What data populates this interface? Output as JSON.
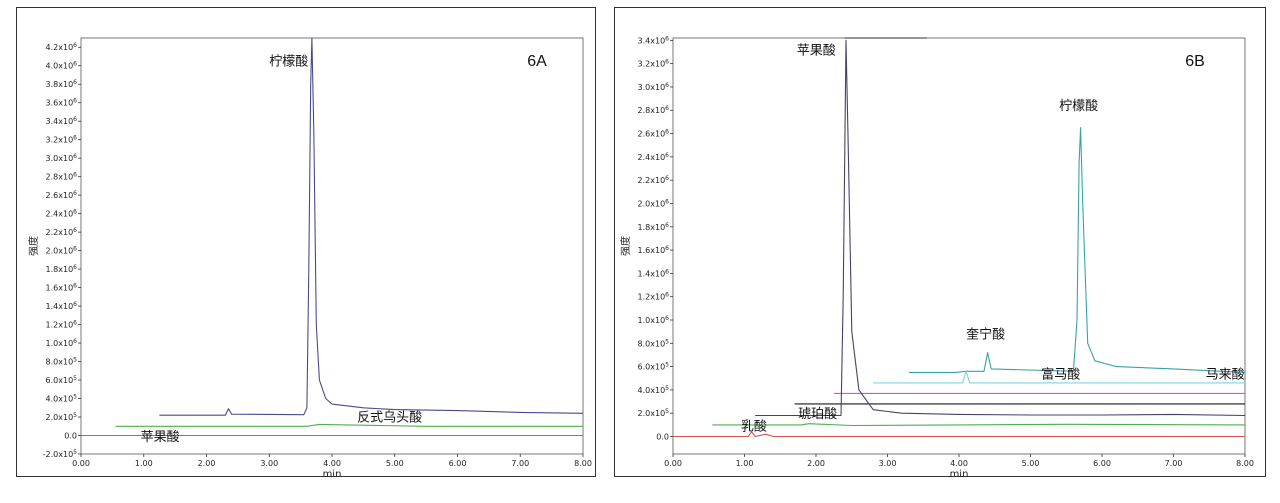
{
  "chart_data": [
    {
      "type": "line",
      "panel_label": "6A",
      "xlabel": "min",
      "ylabel": "强度",
      "xlim": [
        0,
        8
      ],
      "ylim": [
        -200000,
        4300000
      ],
      "x_ticks": [
        "0.00",
        "1.00",
        "2.00",
        "3.00",
        "4.00",
        "5.00",
        "6.00",
        "7.00",
        "8.00"
      ],
      "y_ticks": [
        {
          "v": -200000,
          "m": "-2.0x10",
          "e": "5"
        },
        {
          "v": 0,
          "m": "0.0",
          "e": ""
        },
        {
          "v": 200000,
          "m": "2.0x10",
          "e": "5"
        },
        {
          "v": 400000,
          "m": "4.0x10",
          "e": "5"
        },
        {
          "v": 600000,
          "m": "6.0x10",
          "e": "5"
        },
        {
          "v": 800000,
          "m": "8.0x10",
          "e": "5"
        },
        {
          "v": 1000000,
          "m": "1.0x10",
          "e": "6"
        },
        {
          "v": 1200000,
          "m": "1.2x10",
          "e": "6"
        },
        {
          "v": 1400000,
          "m": "1.4x10",
          "e": "6"
        },
        {
          "v": 1600000,
          "m": "1.6x10",
          "e": "6"
        },
        {
          "v": 1800000,
          "m": "1.8x10",
          "e": "6"
        },
        {
          "v": 2000000,
          "m": "2.0x10",
          "e": "6"
        },
        {
          "v": 2200000,
          "m": "2.2x10",
          "e": "6"
        },
        {
          "v": 2400000,
          "m": "2.4x10",
          "e": "6"
        },
        {
          "v": 2600000,
          "m": "2.6x10",
          "e": "6"
        },
        {
          "v": 2800000,
          "m": "2.8x10",
          "e": "6"
        },
        {
          "v": 3000000,
          "m": "3.0x10",
          "e": "6"
        },
        {
          "v": 3200000,
          "m": "3.2x10",
          "e": "6"
        },
        {
          "v": 3400000,
          "m": "3.4x10",
          "e": "6"
        },
        {
          "v": 3600000,
          "m": "3.6x10",
          "e": "6"
        },
        {
          "v": 3800000,
          "m": "3.8x10",
          "e": "6"
        },
        {
          "v": 4000000,
          "m": "4.0x10",
          "e": "6"
        },
        {
          "v": 4200000,
          "m": "4.2x10",
          "e": "6"
        }
      ],
      "series": [
        {
          "color": "#4a4a8a",
          "points": [
            [
              1.25,
              220000
            ],
            [
              2.3,
              220000
            ],
            [
              2.35,
              290000
            ],
            [
              2.4,
              230000
            ],
            [
              3.55,
              225000
            ],
            [
              3.6,
              300000
            ],
            [
              3.63,
              1800000
            ],
            [
              3.66,
              3800000
            ],
            [
              3.68,
              4300000
            ],
            [
              3.71,
              3300000
            ],
            [
              3.75,
              1200000
            ],
            [
              3.8,
              600000
            ],
            [
              3.9,
              400000
            ],
            [
              4.0,
              340000
            ],
            [
              4.5,
              300000
            ],
            [
              5.0,
              280000
            ],
            [
              6.0,
              270000
            ],
            [
              7.0,
              250000
            ],
            [
              8.0,
              240000
            ]
          ]
        },
        {
          "color": "#4caf50",
          "points": [
            [
              0.55,
              100000
            ],
            [
              3.6,
              100000
            ],
            [
              3.8,
              120000
            ],
            [
              5.5,
              100000
            ],
            [
              8.0,
              100000
            ]
          ]
        },
        {
          "color": "#d9534f",
          "points": [
            [
              0.0,
              0
            ],
            [
              8.0,
              0
            ]
          ]
        }
      ],
      "annotations": [
        {
          "text": "柠檬酸",
          "x": 3.0,
          "y": 4000000
        },
        {
          "text": "反式乌头酸",
          "x": 4.4,
          "y": 150000
        },
        {
          "text": "苹果酸",
          "x": 0.95,
          "y": -60000
        }
      ]
    },
    {
      "type": "line",
      "panel_label": "6B",
      "xlabel": "min",
      "ylabel": "强度",
      "xlim": [
        0,
        8
      ],
      "ylim": [
        -150000,
        3420000
      ],
      "x_ticks": [
        "0.00",
        "1.00",
        "2.00",
        "3.00",
        "4.00",
        "5.00",
        "6.00",
        "7.00",
        "8.00"
      ],
      "y_ticks": [
        {
          "v": 0,
          "m": "0.0",
          "e": ""
        },
        {
          "v": 200000,
          "m": "2.0x10",
          "e": "5"
        },
        {
          "v": 400000,
          "m": "4.0x10",
          "e": "5"
        },
        {
          "v": 600000,
          "m": "6.0x10",
          "e": "5"
        },
        {
          "v": 800000,
          "m": "8.0x10",
          "e": "5"
        },
        {
          "v": 1000000,
          "m": "1.0x10",
          "e": "6"
        },
        {
          "v": 1200000,
          "m": "1.2x10",
          "e": "6"
        },
        {
          "v": 1400000,
          "m": "1.4x10",
          "e": "6"
        },
        {
          "v": 1600000,
          "m": "1.6x10",
          "e": "6"
        },
        {
          "v": 1800000,
          "m": "1.8x10",
          "e": "6"
        },
        {
          "v": 2000000,
          "m": "2.0x10",
          "e": "6"
        },
        {
          "v": 2200000,
          "m": "2.2x10",
          "e": "6"
        },
        {
          "v": 2400000,
          "m": "2.4x10",
          "e": "6"
        },
        {
          "v": 2600000,
          "m": "2.6x10",
          "e": "6"
        },
        {
          "v": 2800000,
          "m": "2.8x10",
          "e": "6"
        },
        {
          "v": 3000000,
          "m": "3.0x10",
          "e": "6"
        },
        {
          "v": 3200000,
          "m": "3.2x10",
          "e": "6"
        },
        {
          "v": 3400000,
          "m": "3.4x10",
          "e": "6"
        }
      ],
      "series": [
        {
          "color": "#38a3a5",
          "points": [
            [
              3.3,
              550000
            ],
            [
              3.95,
              550000
            ],
            [
              4.1,
              560000
            ],
            [
              4.35,
              560000
            ],
            [
              4.4,
              720000
            ],
            [
              4.45,
              580000
            ],
            [
              5.6,
              560000
            ],
            [
              5.65,
              1000000
            ],
            [
              5.68,
              2350000
            ],
            [
              5.7,
              2650000
            ],
            [
              5.73,
              2000000
            ],
            [
              5.8,
              800000
            ],
            [
              5.9,
              650000
            ],
            [
              6.2,
              600000
            ],
            [
              7.0,
              580000
            ],
            [
              8.0,
              550000
            ]
          ]
        },
        {
          "color": "#7fd4e0",
          "points": [
            [
              2.8,
              460000
            ],
            [
              4.05,
              460000
            ],
            [
              4.1,
              560000
            ],
            [
              4.15,
              460000
            ],
            [
              8.0,
              460000
            ]
          ]
        },
        {
          "color": "#c060c0",
          "points": [
            [
              2.25,
              370000
            ],
            [
              8.0,
              370000
            ]
          ]
        },
        {
          "color": "#1a1a1a",
          "points": [
            [
              1.7,
              280000
            ],
            [
              8.0,
              280000
            ]
          ]
        },
        {
          "color": "#444466",
          "points": [
            [
              1.15,
              180000
            ],
            [
              2.35,
              180000
            ],
            [
              2.38,
              1200000
            ],
            [
              2.42,
              3400000
            ],
            [
              2.45,
              2500000
            ],
            [
              2.5,
              900000
            ],
            [
              2.6,
              400000
            ],
            [
              2.8,
              230000
            ],
            [
              3.2,
              200000
            ],
            [
              4.0,
              190000
            ],
            [
              5.0,
              185000
            ],
            [
              6.0,
              185000
            ],
            [
              7.0,
              190000
            ],
            [
              8.0,
              180000
            ]
          ]
        },
        {
          "color": "#2a2a3a",
          "points": [
            [
              2.4,
              3420000
            ],
            [
              3.55,
              3420000
            ]
          ]
        },
        {
          "color": "#4caf50",
          "points": [
            [
              0.55,
              100000
            ],
            [
              1.8,
              100000
            ],
            [
              1.9,
              110000
            ],
            [
              2.5,
              95000
            ],
            [
              4.0,
              100000
            ],
            [
              5.5,
              105000
            ],
            [
              8.0,
              100000
            ]
          ]
        },
        {
          "color": "#d9534f",
          "points": [
            [
              0.0,
              0
            ],
            [
              1.05,
              0
            ],
            [
              1.1,
              40000
            ],
            [
              1.15,
              0
            ],
            [
              1.3,
              20000
            ],
            [
              1.4,
              0
            ],
            [
              8.0,
              0
            ]
          ]
        }
      ],
      "annotations": [
        {
          "text": "苹果酸",
          "x": 1.73,
          "y": 3280000
        },
        {
          "text": "柠檬酸",
          "x": 5.4,
          "y": 2800000
        },
        {
          "text": "奎宁酸",
          "x": 4.1,
          "y": 840000
        },
        {
          "text": "富马酸",
          "x": 5.15,
          "y": 500000
        },
        {
          "text": "马来酸",
          "x": 7.45,
          "y": 500000
        },
        {
          "text": "琥珀酸",
          "x": 1.75,
          "y": 160000
        },
        {
          "text": "乳酸",
          "x": 0.95,
          "y": 50000
        }
      ]
    }
  ]
}
